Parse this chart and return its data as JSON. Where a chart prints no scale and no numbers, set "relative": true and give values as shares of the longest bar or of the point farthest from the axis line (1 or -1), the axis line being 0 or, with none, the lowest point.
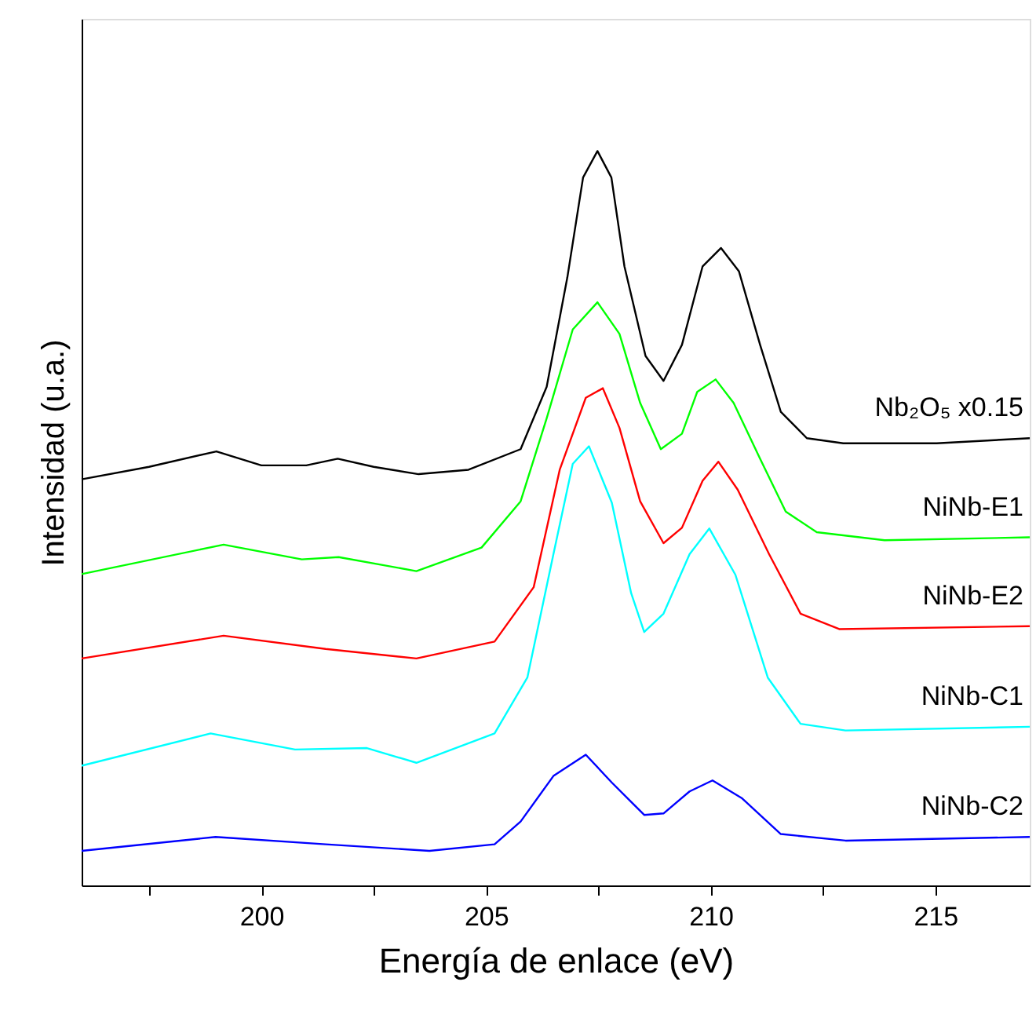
{
  "chart_data": {
    "type": "line",
    "relative": true,
    "xlabel": "Energía de enlace (eV)",
    "ylabel": "Intensidad (u.a.)",
    "xlim": [
      196,
      217.1
    ],
    "xticks": [
      {
        "value": 197.5,
        "label": null
      },
      200,
      {
        "value": 202.5,
        "label": null
      },
      205,
      {
        "value": 207.5,
        "label": null
      },
      210,
      {
        "value": 212.5,
        "label": null
      },
      215
    ],
    "grid": false,
    "line_style": "solid",
    "marker": "none",
    "series": [
      {
        "name": "Nb₂O₅ x0.15",
        "color": "#000000",
        "x": [
          196.0,
          197.5,
          199.0,
          200.0,
          201.0,
          201.7,
          202.5,
          203.5,
          204.61,
          205.77,
          206.35,
          206.81,
          207.16,
          207.48,
          207.79,
          208.08,
          208.55,
          208.95,
          209.36,
          209.82,
          210.23,
          210.63,
          211.1,
          211.56,
          212.14,
          212.95,
          215.03,
          217.1
        ],
        "values": [
          0.553,
          0.57,
          0.591,
          0.572,
          0.572,
          0.581,
          0.57,
          0.56,
          0.566,
          0.594,
          0.679,
          0.828,
          0.964,
          1.0,
          0.964,
          0.843,
          0.721,
          0.687,
          0.736,
          0.843,
          0.868,
          0.836,
          0.736,
          0.645,
          0.609,
          0.602,
          0.602,
          0.609
        ]
      },
      {
        "name": "NiNb-E1",
        "color": "#00ff00",
        "x": [
          196.0,
          199.16,
          200.9,
          201.72,
          203.45,
          204.9,
          205.77,
          206.35,
          206.93,
          207.48,
          207.97,
          208.43,
          208.89,
          209.36,
          209.7,
          210.11,
          210.51,
          211.1,
          211.67,
          212.36,
          213.87,
          217.1
        ],
        "values": [
          0.424,
          0.464,
          0.444,
          0.447,
          0.428,
          0.46,
          0.523,
          0.636,
          0.757,
          0.794,
          0.751,
          0.657,
          0.594,
          0.615,
          0.672,
          0.689,
          0.657,
          0.581,
          0.509,
          0.481,
          0.47,
          0.474
        ]
      },
      {
        "name": "NiNb-E2",
        "color": "#ff0000",
        "x": [
          196.0,
          199.16,
          201.43,
          203.45,
          205.19,
          206.06,
          206.64,
          207.22,
          207.6,
          207.97,
          208.43,
          208.95,
          209.36,
          209.82,
          210.17,
          210.6,
          211.3,
          212.0,
          212.86,
          217.1
        ],
        "values": [
          0.309,
          0.34,
          0.322,
          0.309,
          0.332,
          0.406,
          0.566,
          0.664,
          0.677,
          0.623,
          0.523,
          0.466,
          0.487,
          0.551,
          0.577,
          0.539,
          0.451,
          0.37,
          0.349,
          0.353
        ]
      },
      {
        "name": "NiNb-C1",
        "color": "#00ffff",
        "x": [
          196.0,
          198.87,
          200.75,
          202.35,
          203.45,
          205.19,
          205.92,
          206.5,
          206.93,
          207.29,
          207.8,
          208.23,
          208.52,
          208.95,
          209.53,
          209.97,
          210.55,
          211.27,
          212.0,
          213.0,
          217.1
        ],
        "values": [
          0.163,
          0.207,
          0.185,
          0.187,
          0.167,
          0.207,
          0.283,
          0.451,
          0.574,
          0.598,
          0.521,
          0.398,
          0.345,
          0.37,
          0.451,
          0.486,
          0.423,
          0.283,
          0.22,
          0.211,
          0.216
        ]
      },
      {
        "name": "NiNb-C2",
        "color": "#0000ff",
        "x": [
          196.0,
          198.98,
          201.43,
          203.74,
          205.19,
          205.77,
          206.5,
          207.22,
          207.8,
          208.52,
          208.95,
          209.53,
          210.04,
          210.69,
          211.56,
          213.0,
          217.1
        ],
        "values": [
          0.047,
          0.066,
          0.056,
          0.047,
          0.056,
          0.087,
          0.149,
          0.178,
          0.14,
          0.096,
          0.098,
          0.128,
          0.143,
          0.119,
          0.07,
          0.061,
          0.066
        ]
      }
    ]
  }
}
